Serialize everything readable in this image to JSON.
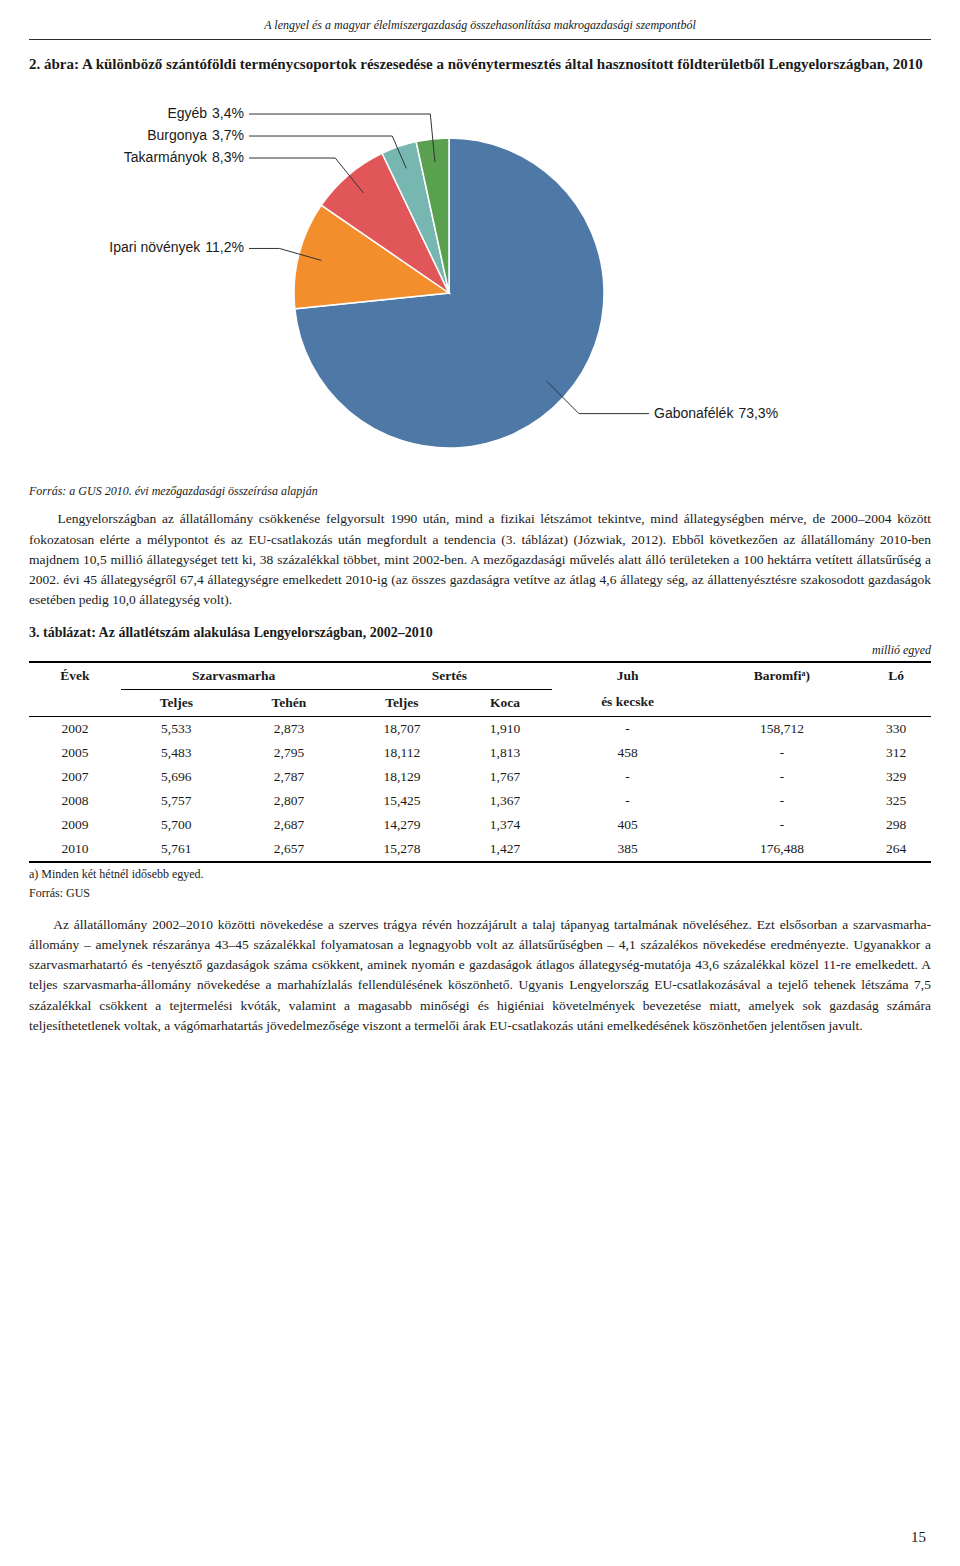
{
  "page": {
    "header": "A lengyel és a magyar élelmiszergazdaság összehasonlítása makrogazdasági szempontból",
    "page_number": "15"
  },
  "chart_data": {
    "type": "pie",
    "title": "2. ábra: A különböző szántóföldi terménycsoportok részesedése a növénytermesztés által hasznosított földterületből Lengyelországban, 2010",
    "categories": [
      "Gabonafélék",
      "Ipari növények",
      "Takarmányok",
      "Burgonya",
      "Egyéb"
    ],
    "values": [
      73.3,
      11.2,
      8.3,
      3.7,
      3.4
    ],
    "value_labels": [
      "73,3%",
      "11,2%",
      "8,3%",
      "3,7%",
      "3,4%"
    ],
    "data_labels": true,
    "source": "Forrás: a GUS 2010. évi mezőgazdasági összeírása alapján"
  },
  "body_text": "     Lengyelországban az állatállomány csökkenése felgyorsult 1990 után, mind a fizikai létszámot tekintve, mind állategységben mérve, de 2000–2004 között fokozatosan elérte a mélypontot és az EU-csatlakozás után megfordult a tendencia (3. táblázat) (Józwiak, 2012). Ebből következően az állatállomány 2010-ben majdnem 10,5 millió állategységet tett ki, 38 százalékkal többet, mint 2002-ben. A mezőgazdasági művelés alatt álló területeken a 100 hektárra vetített állatsűrűség a 2002. évi 45 állategységről 67,4 állategységre emelkedett 2010-ig (az összes gazdaságra vetítve az átlag 4,6 állategy ség, az állattenyésztésre szakosodott gazdaságok esetében pedig 10,0 állategység volt).",
  "table": {
    "title": "3. táblázat: Az állatlétszám alakulása Lengyelországban, 2002–2010",
    "unit": "millió egyed",
    "header": [
      {
        "text": "Évek",
        "span": 1
      },
      {
        "text": "Szarvasmarha",
        "span": 2
      },
      {
        "text": "Sertés",
        "span": 2
      },
      {
        "text": "Juh",
        "span": 1
      },
      {
        "text": "Baromfiᵃ)",
        "span": 1
      },
      {
        "text": "Ló",
        "span": 1
      }
    ],
    "subheader": [
      null,
      "Teljes",
      "Tehén",
      "Teljes",
      "Koca",
      "és kecske",
      null,
      null
    ],
    "rows": [
      [
        "2002",
        "5,533",
        "2,873",
        "18,707",
        "1,910",
        "-",
        "158,712",
        "330"
      ],
      [
        "2005",
        "5,483",
        "2,795",
        "18,112",
        "1,813",
        "458",
        "-",
        "312"
      ],
      [
        "2007",
        "5,696",
        "2,787",
        "18,129",
        "1,767",
        "-",
        "-",
        "329"
      ],
      [
        "2008",
        "5,757",
        "2,807",
        "15,425",
        "1,367",
        "-",
        "-",
        "325"
      ],
      [
        "2009",
        "5,700",
        "2,687",
        "14,279",
        "1,374",
        "405",
        "-",
        "298"
      ],
      [
        "2010",
        "5,761",
        "2,657",
        "15,278",
        "1,427",
        "385",
        "176,488",
        "264"
      ]
    ],
    "footnote": "a) Minden két hétnél idősebb egyed.",
    "source": "Forrás: GUS"
  },
  "body_text2": "     Az állatállomány 2002–2010 közötti növekedése a szerves trágya révén hozzájárult a talaj tápanyag tartalmának növeléséhez. Ezt elsősorban a szarvasmarha-állomány – amelynek részaránya 43–45 százalékkal folyamatosan a legnagyobb volt az állatsűrűségben – 4,1 százalékos növekedése eredményezte. Ugyanakkor a szarvasmarhatartó és -tenyésztő gazdaságok száma csökkent, aminek nyomán e gazdaságok átlagos állategység-mutatója 43,6 százalékkal közel 11-re emelkedett. A teljes szarvasmarha-állomány növekedése a marhahízlalás fellendülésének köszönhető. Ugyanis Lengyelország EU-csatlakozásával a tejelő tehenek létszáma 7,5 százalékkal csökkent a tejtermelési kvóták, valamint a magasabb minőségi és higiéniai követelmények bevezetése miatt, amelyek sok gazdaság számára teljesíthetetlenek voltak, a vágómarhatartás jövedelmezősége viszont a termelői árak EU-csatlakozás utáni emelkedésének köszönhetően jelentősen javult."
}
